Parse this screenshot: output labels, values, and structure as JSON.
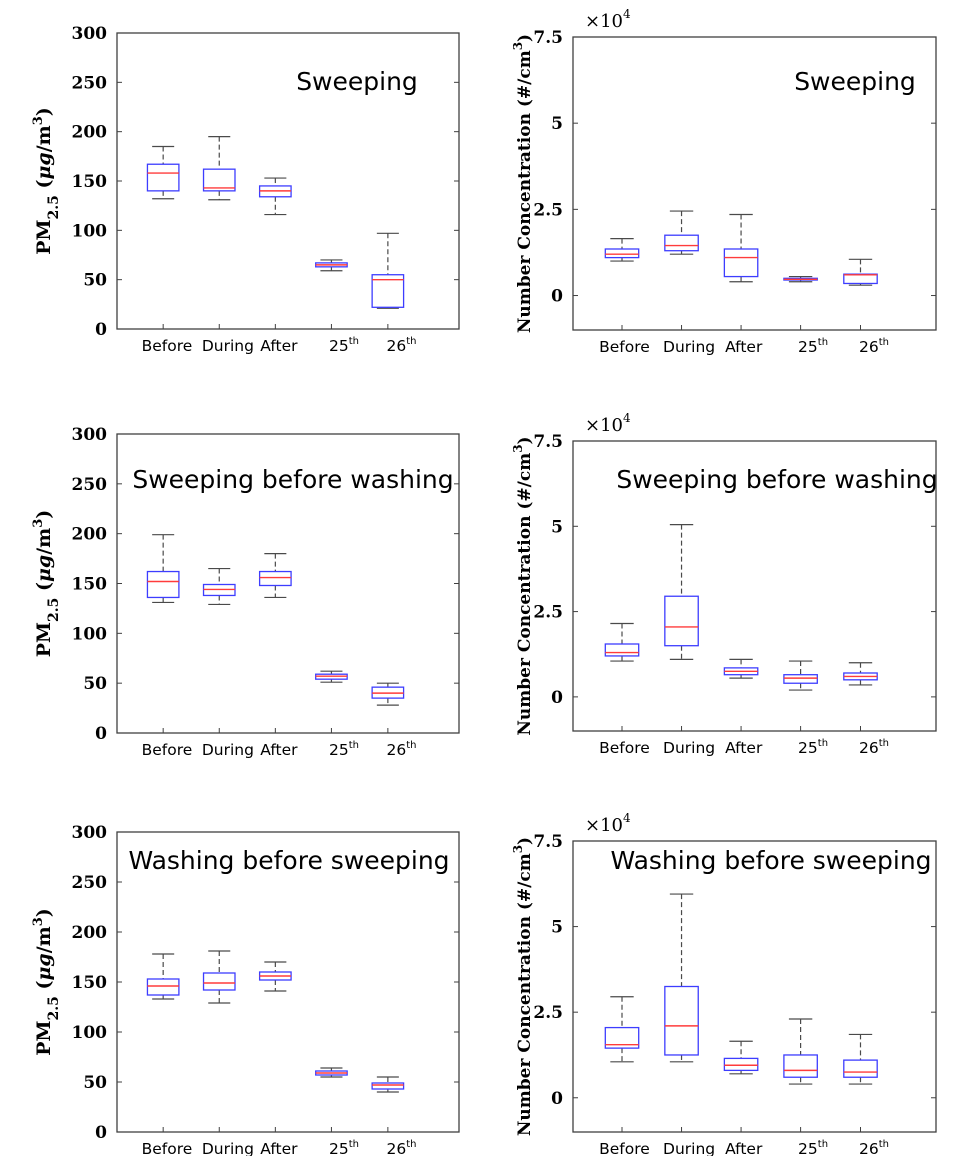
{
  "chart_data": [
    {
      "type": "box",
      "title": "Sweeping",
      "ylabel": "PM2.5 (μg/m3)",
      "yticks": [
        "0",
        "50",
        "100",
        "150",
        "200",
        "250",
        "300"
      ],
      "ylim": [
        0,
        300
      ],
      "categories": [
        "Before",
        "During",
        "After",
        "25th",
        "26th"
      ],
      "boxes": [
        {
          "whislo": 132,
          "q1": 140,
          "med": 158,
          "q3": 167,
          "whishi": 185
        },
        {
          "whislo": 131,
          "q1": 140,
          "med": 143,
          "q3": 162,
          "whishi": 195
        },
        {
          "whislo": 116,
          "q1": 134,
          "med": 140,
          "q3": 145,
          "whishi": 153
        },
        {
          "whislo": 59,
          "q1": 63,
          "med": 65,
          "q3": 67,
          "whishi": 70
        },
        {
          "whislo": 21,
          "q1": 22,
          "med": 50,
          "q3": 55,
          "whishi": 97
        }
      ]
    },
    {
      "type": "box",
      "title": "Sweeping",
      "ylabel": "Number Concentration (#/cm3)",
      "yticks": [
        "0",
        "2.5",
        "5",
        "7.5"
      ],
      "multiplier": "×10",
      "multiplier_exp": "4",
      "ylim": [
        -1,
        7.5
      ],
      "categories": [
        "Before",
        "During",
        "After",
        "25th",
        "26th"
      ],
      "boxes": [
        {
          "whislo": 1.0,
          "q1": 1.1,
          "med": 1.2,
          "q3": 1.35,
          "whishi": 1.65
        },
        {
          "whislo": 1.2,
          "q1": 1.3,
          "med": 1.45,
          "q3": 1.75,
          "whishi": 2.45
        },
        {
          "whislo": 0.4,
          "q1": 0.55,
          "med": 1.1,
          "q3": 1.35,
          "whishi": 2.35
        },
        {
          "whislo": 0.4,
          "q1": 0.45,
          "med": 0.47,
          "q3": 0.5,
          "whishi": 0.55
        },
        {
          "whislo": 0.3,
          "q1": 0.35,
          "med": 0.6,
          "q3": 0.62,
          "whishi": 1.05
        }
      ]
    },
    {
      "type": "box",
      "title": "Sweeping before washing",
      "ylabel": "PM2.5 (μg/m3)",
      "yticks": [
        "0",
        "50",
        "100",
        "150",
        "200",
        "250",
        "300"
      ],
      "ylim": [
        0,
        300
      ],
      "categories": [
        "Before",
        "During",
        "After",
        "25th",
        "26th"
      ],
      "boxes": [
        {
          "whislo": 131,
          "q1": 136,
          "med": 152,
          "q3": 162,
          "whishi": 199
        },
        {
          "whislo": 129,
          "q1": 138,
          "med": 144,
          "q3": 149,
          "whishi": 165
        },
        {
          "whislo": 136,
          "q1": 148,
          "med": 156,
          "q3": 162,
          "whishi": 180
        },
        {
          "whislo": 51,
          "q1": 54,
          "med": 57,
          "q3": 59,
          "whishi": 62
        },
        {
          "whislo": 28,
          "q1": 35,
          "med": 40,
          "q3": 46,
          "whishi": 50
        }
      ]
    },
    {
      "type": "box",
      "title": "Sweeping before washing",
      "ylabel": "Number Concentration (#/cm3)",
      "yticks": [
        "0",
        "2.5",
        "5",
        "7.5"
      ],
      "multiplier": "×10",
      "multiplier_exp": "4",
      "ylim": [
        -1,
        7.5
      ],
      "categories": [
        "Before",
        "During",
        "After",
        "25th",
        "26th"
      ],
      "boxes": [
        {
          "whislo": 1.05,
          "q1": 1.2,
          "med": 1.3,
          "q3": 1.55,
          "whishi": 2.15
        },
        {
          "whislo": 1.1,
          "q1": 1.5,
          "med": 2.05,
          "q3": 2.95,
          "whishi": 5.05
        },
        {
          "whislo": 0.55,
          "q1": 0.65,
          "med": 0.75,
          "q3": 0.85,
          "whishi": 1.1
        },
        {
          "whislo": 0.2,
          "q1": 0.4,
          "med": 0.55,
          "q3": 0.65,
          "whishi": 1.05
        },
        {
          "whislo": 0.35,
          "q1": 0.5,
          "med": 0.6,
          "q3": 0.7,
          "whishi": 1.0
        }
      ]
    },
    {
      "type": "box",
      "title": "Washing before sweeping",
      "ylabel": "PM2.5 (μg/m3)",
      "yticks": [
        "0",
        "50",
        "100",
        "150",
        "200",
        "250",
        "300"
      ],
      "ylim": [
        0,
        300
      ],
      "categories": [
        "Before",
        "During",
        "After",
        "25th",
        "26th"
      ],
      "boxes": [
        {
          "whislo": 133,
          "q1": 137,
          "med": 146,
          "q3": 153,
          "whishi": 178
        },
        {
          "whislo": 129,
          "q1": 142,
          "med": 149,
          "q3": 159,
          "whishi": 181
        },
        {
          "whislo": 141,
          "q1": 152,
          "med": 156,
          "q3": 160,
          "whishi": 170
        },
        {
          "whislo": 55,
          "q1": 57,
          "med": 59,
          "q3": 61,
          "whishi": 64
        },
        {
          "whislo": 40,
          "q1": 43,
          "med": 47,
          "q3": 49,
          "whishi": 55
        }
      ]
    },
    {
      "type": "box",
      "title": "Washing before sweeping",
      "ylabel": "Number Concentration (#/cm3)",
      "yticks": [
        "0",
        "2.5",
        "5",
        "7.5"
      ],
      "multiplier": "×10",
      "multiplier_exp": "4",
      "ylim": [
        -1,
        7.5
      ],
      "categories": [
        "Before",
        "During",
        "After",
        "25th",
        "26th"
      ],
      "boxes": [
        {
          "whislo": 1.05,
          "q1": 1.45,
          "med": 1.55,
          "q3": 2.05,
          "whishi": 2.95
        },
        {
          "whislo": 1.05,
          "q1": 1.25,
          "med": 2.1,
          "q3": 3.25,
          "whishi": 5.95
        },
        {
          "whislo": 0.7,
          "q1": 0.8,
          "med": 0.95,
          "q3": 1.15,
          "whishi": 1.65
        },
        {
          "whislo": 0.4,
          "q1": 0.6,
          "med": 0.8,
          "q3": 1.25,
          "whishi": 2.3
        },
        {
          "whislo": 0.4,
          "q1": 0.6,
          "med": 0.75,
          "q3": 1.1,
          "whishi": 1.85
        }
      ]
    }
  ],
  "colors": {
    "box": "#3d3dff",
    "median": "#ff3b3b",
    "whisker": "#4a4a4a",
    "axes": "#404040"
  }
}
